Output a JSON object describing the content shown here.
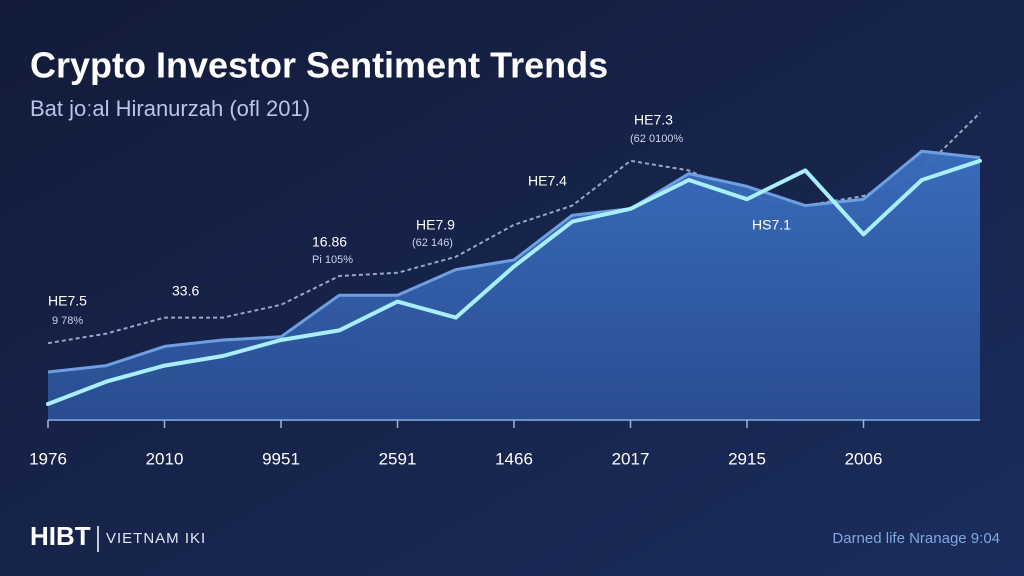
{
  "chart_data": {
    "type": "area-line",
    "title": "Crypto Investor Sentiment Trends",
    "subtitle": "Bat joːal Hiranurzah (ofl 201)",
    "categories": [
      "1976",
      null,
      "2010",
      null,
      "9951",
      null,
      "2591",
      null,
      "1466",
      null,
      "2017",
      null,
      "2915",
      null,
      "2006",
      null,
      null
    ],
    "series": [
      {
        "color": "#9aa6c4",
        "style": "dashed",
        "values": [
          24,
          27,
          32,
          32,
          36,
          45,
          46,
          51,
          61,
          67,
          81,
          78,
          70,
          67,
          70,
          78,
          96
        ]
      },
      {
        "color": "#6f9fe0",
        "style": "area",
        "values": [
          15,
          17,
          23,
          25,
          26,
          39,
          39,
          47,
          50,
          64,
          66,
          77,
          73,
          67,
          69,
          84,
          82
        ]
      },
      {
        "color": "#a8eefc",
        "style": "solid",
        "values": [
          5,
          12,
          17,
          20,
          25,
          28,
          37,
          32,
          48,
          62,
          66,
          75,
          69,
          78,
          58,
          75,
          81
        ]
      }
    ],
    "ylim": [
      0,
      100
    ],
    "annotations": [
      "HE7.5",
      "9 78%",
      "33.6",
      "16.86",
      "Pi 105%",
      "HE7.9",
      "(62 146)",
      "HE7.4",
      "HE7.3",
      "(62 0100%",
      "HS7.1"
    ]
  },
  "footer": {
    "brand": "HIBT",
    "tag": "VIETNAM IKI",
    "note": "Darned life Nranage 9:04"
  }
}
